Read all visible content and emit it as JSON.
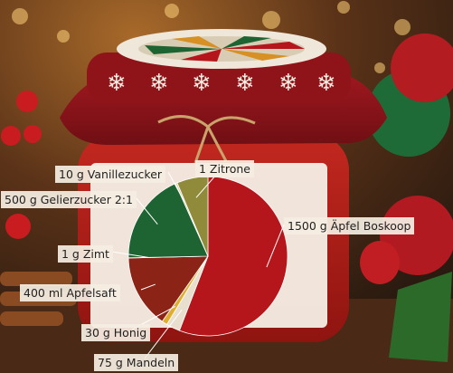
{
  "chart_data": {
    "type": "pie",
    "title": "",
    "slices": [
      {
        "label": "1500 g Äpfel Boskoop",
        "value": 1500,
        "color": "#b5161b"
      },
      {
        "label": "75 g Mandeln",
        "value": 75,
        "color": "#e8dfcf"
      },
      {
        "label": "30 g Honig",
        "value": 30,
        "color": "#e0ad2e"
      },
      {
        "label": "400 ml Apfelsaft",
        "value": 400,
        "color": "#8b2316"
      },
      {
        "label": "1 g Zimt",
        "value": 1,
        "color": "#c8a87a"
      },
      {
        "label": "500 g Gelierzucker 2:1",
        "value": 500,
        "color": "#1e6432"
      },
      {
        "label": "10 g Vanillezucker",
        "value": 10,
        "color": "#d9cfa5"
      },
      {
        "label": "1 Zitrone",
        "value": 170,
        "color": "#8f8b3a"
      }
    ],
    "legend": "none",
    "labels": "outside with leader lines"
  }
}
